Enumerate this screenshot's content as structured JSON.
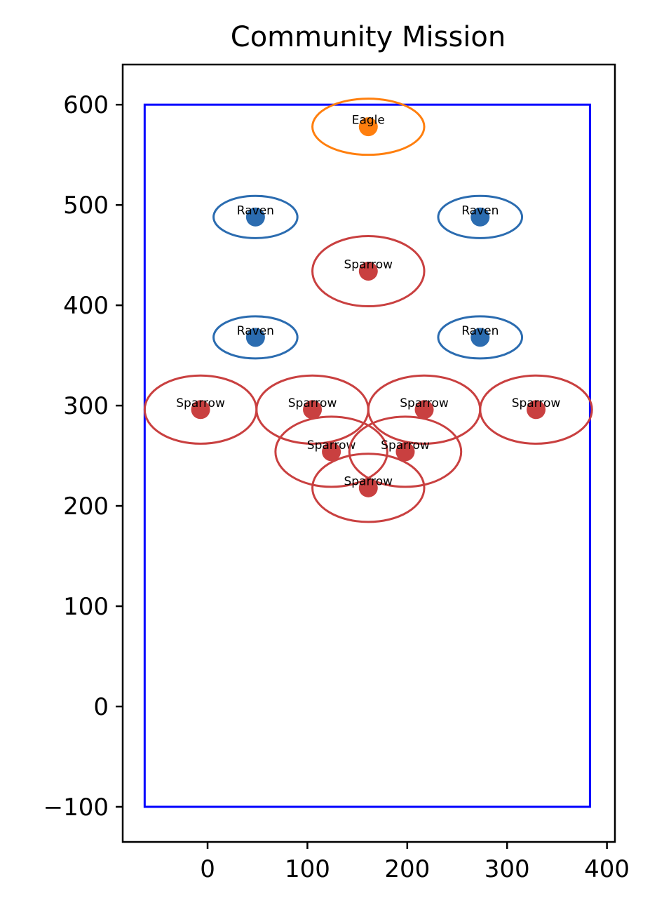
{
  "chart_data": {
    "type": "scatter",
    "title": "Community Mission",
    "xlabel": "",
    "ylabel": "",
    "xlim": [
      -85,
      408
    ],
    "ylim": [
      -135,
      640
    ],
    "x_ticks": [
      0,
      100,
      200,
      300,
      400
    ],
    "y_ticks": [
      -100,
      0,
      100,
      200,
      300,
      400,
      500,
      600
    ],
    "x_tick_labels": [
      "0",
      "100",
      "200",
      "300",
      "400"
    ],
    "y_tick_labels": [
      "−100",
      "0",
      "100",
      "200",
      "300",
      "400",
      "500",
      "600"
    ],
    "grid": false,
    "boundary": {
      "x": [
        -63,
        383
      ],
      "y": [
        -100,
        600
      ],
      "color": "#0000ff"
    },
    "colors": {
      "Eagle": "#ff7f0e",
      "Raven": "#2b6cb0",
      "Sparrow": "#c94040"
    },
    "points": [
      {
        "label": "Eagle",
        "x": 161,
        "y": 578,
        "rx": 56,
        "ry": 28
      },
      {
        "label": "Raven",
        "x": 48,
        "y": 488,
        "rx": 42,
        "ry": 21
      },
      {
        "label": "Raven",
        "x": 273,
        "y": 488,
        "rx": 42,
        "ry": 21
      },
      {
        "label": "Sparrow",
        "x": 161,
        "y": 434,
        "rx": 56,
        "ry": 35
      },
      {
        "label": "Raven",
        "x": 48,
        "y": 368,
        "rx": 42,
        "ry": 21
      },
      {
        "label": "Raven",
        "x": 273,
        "y": 368,
        "rx": 42,
        "ry": 21
      },
      {
        "label": "Sparrow",
        "x": -7,
        "y": 296,
        "rx": 56,
        "ry": 34
      },
      {
        "label": "Sparrow",
        "x": 105,
        "y": 296,
        "rx": 56,
        "ry": 34
      },
      {
        "label": "Sparrow",
        "x": 217,
        "y": 296,
        "rx": 56,
        "ry": 34
      },
      {
        "label": "Sparrow",
        "x": 329,
        "y": 296,
        "rx": 56,
        "ry": 34
      },
      {
        "label": "Sparrow",
        "x": 124,
        "y": 254,
        "rx": 56,
        "ry": 35
      },
      {
        "label": "Sparrow",
        "x": 198,
        "y": 254,
        "rx": 56,
        "ry": 35
      },
      {
        "label": "Sparrow",
        "x": 161,
        "y": 218,
        "rx": 56,
        "ry": 34
      }
    ]
  }
}
